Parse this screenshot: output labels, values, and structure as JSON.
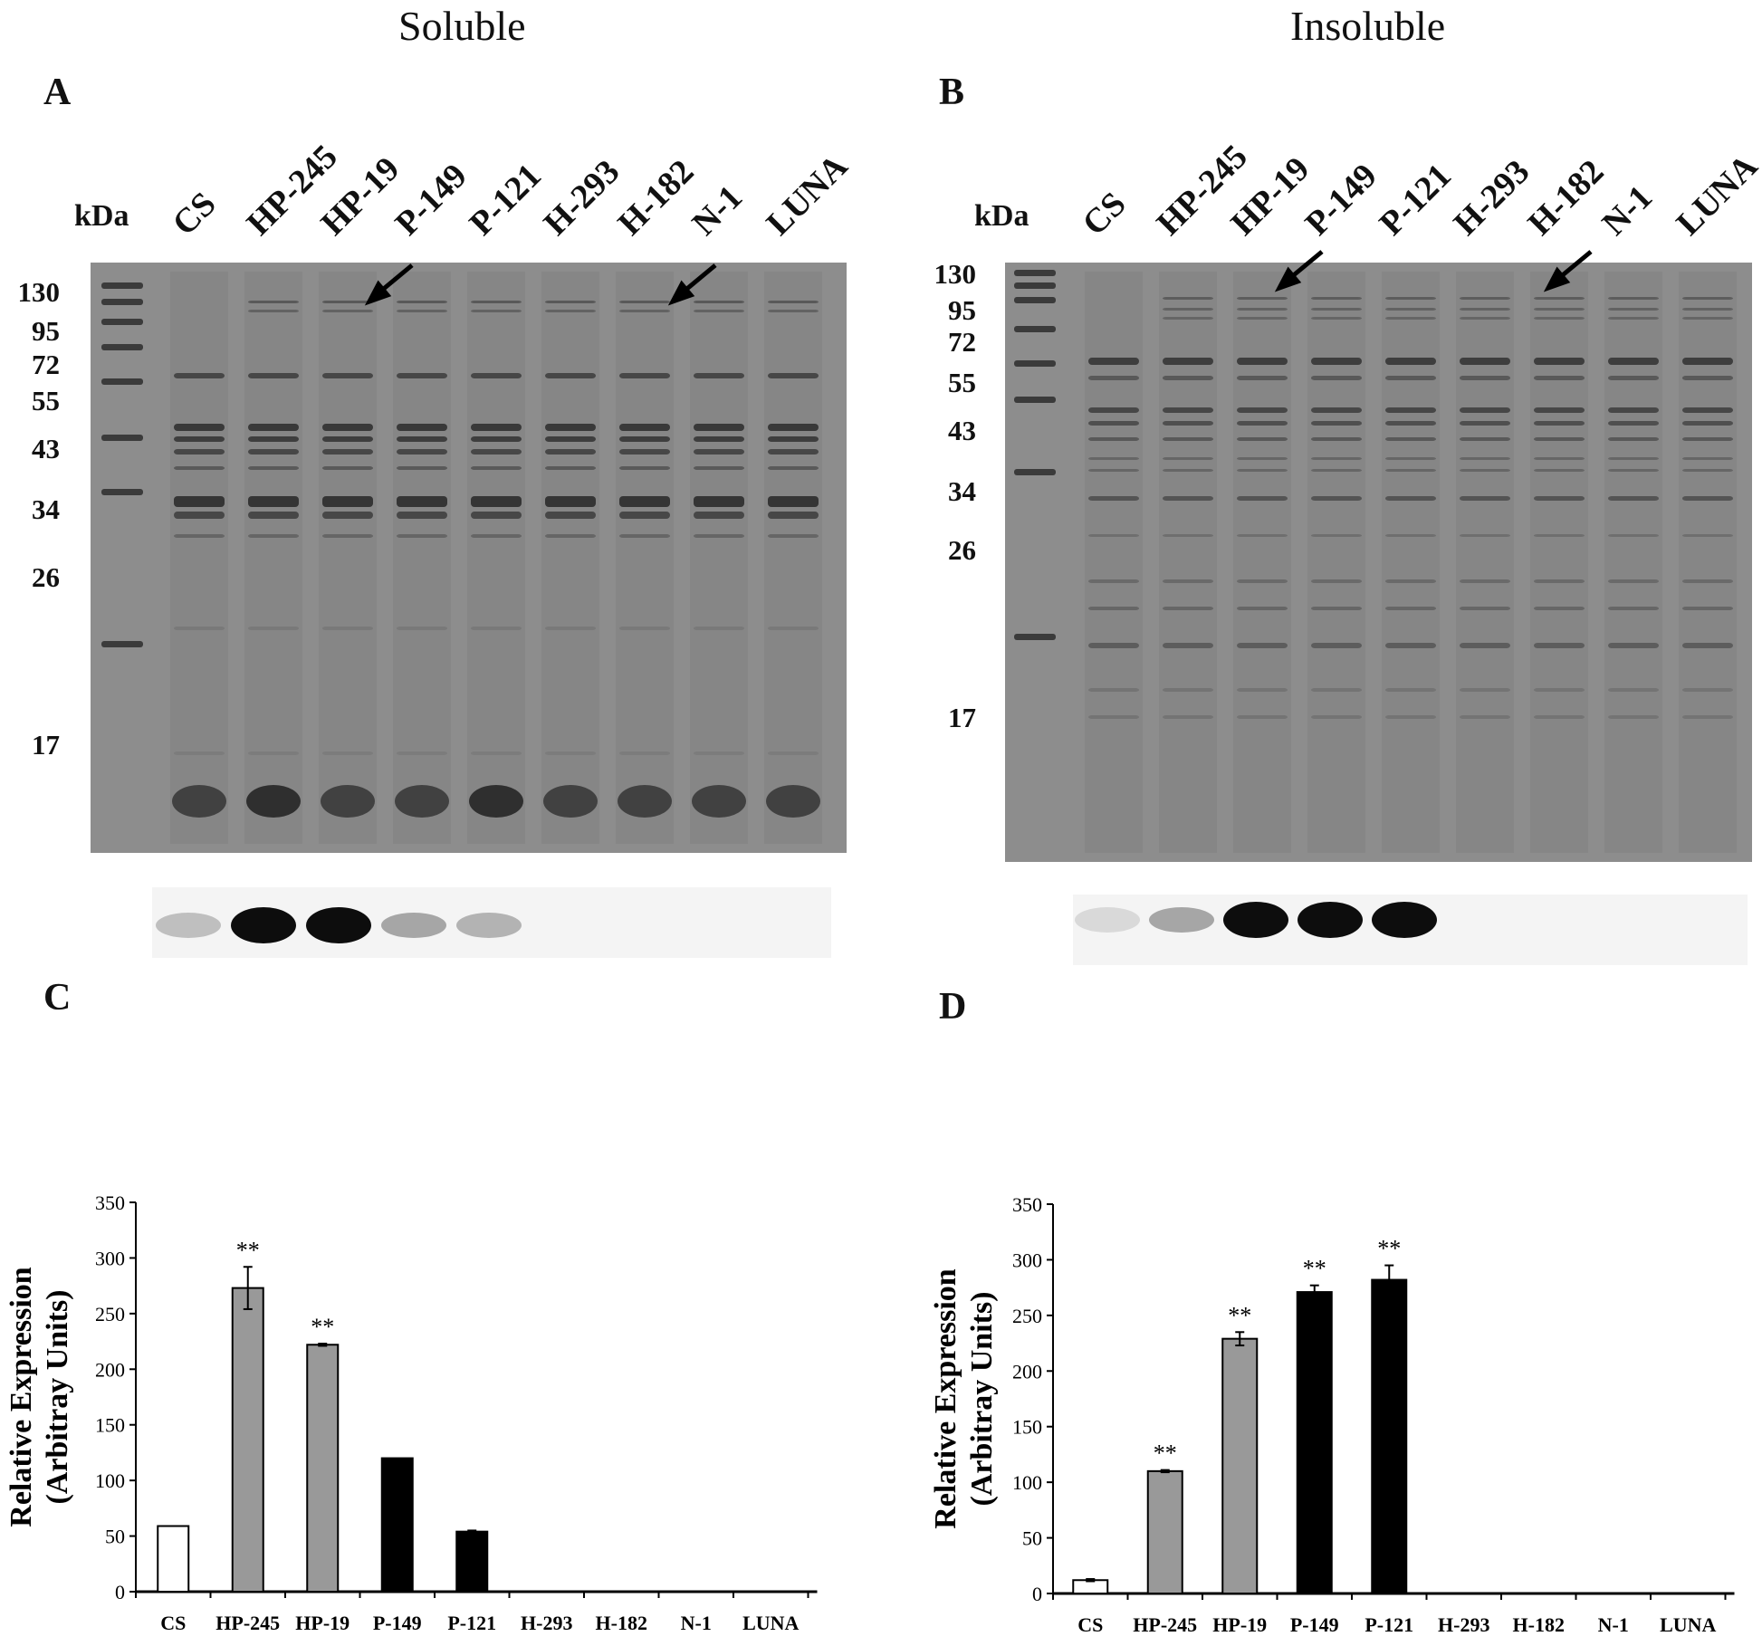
{
  "headers": {
    "soluble": "Soluble",
    "insoluble": "Insoluble"
  },
  "panels": {
    "a": "A",
    "b": "B",
    "c": "C",
    "d": "D"
  },
  "kda_label": "kDa",
  "lanes": [
    "CS",
    "HP-245",
    "HP-19",
    "P-149",
    "P-121",
    "H-293",
    "H-182",
    "N-1",
    "LUNA"
  ],
  "markers": [
    "130",
    "95",
    "72",
    "55",
    "43",
    "34",
    "26",
    "17"
  ],
  "blot_intensity": {
    "soluble": [
      0.25,
      0.95,
      0.95,
      0.35,
      0.3,
      0,
      0,
      0,
      0
    ],
    "insoluble": [
      0.15,
      0.35,
      0.95,
      0.95,
      0.95,
      0,
      0,
      0,
      0
    ]
  },
  "colors": {
    "control": "#ffffff",
    "hp_group": "#999999",
    "p_group": "#000000",
    "gel": "#8c8c8c"
  },
  "chart_data": [
    {
      "type": "bar",
      "panel": "C",
      "categories": [
        "CS",
        "HP-245",
        "HP-19",
        "P-149",
        "P-121",
        "H-293",
        "H-182",
        "N-1",
        "LUNA"
      ],
      "values": [
        59,
        273,
        222,
        120,
        54,
        0,
        0,
        0,
        0
      ],
      "errors": [
        0,
        19,
        1,
        0,
        1,
        0,
        0,
        0,
        0
      ],
      "significance": [
        "",
        "**",
        "**",
        "",
        "",
        "",
        "",
        "",
        ""
      ],
      "bar_colors": [
        "#ffffff",
        "#999999",
        "#999999",
        "#000000",
        "#000000",
        "#000000",
        "#000000",
        "#000000",
        "#000000"
      ],
      "ylabel_line1": "Relative Expression",
      "ylabel_line2": "(Arbitray Units)",
      "ylim": [
        0,
        350
      ],
      "yticks": [
        0,
        50,
        100,
        150,
        200,
        250,
        300,
        350
      ],
      "grid": false
    },
    {
      "type": "bar",
      "panel": "D",
      "categories": [
        "CS",
        "HP-245",
        "HP-19",
        "P-149",
        "P-121",
        "H-293",
        "H-182",
        "N-1",
        "LUNA"
      ],
      "values": [
        12,
        110,
        229,
        271,
        282,
        0,
        0,
        0,
        0
      ],
      "errors": [
        1,
        1,
        6,
        6,
        13,
        0,
        0,
        0,
        0
      ],
      "significance": [
        "",
        "**",
        "**",
        "**",
        "**",
        "",
        "",
        "",
        ""
      ],
      "bar_colors": [
        "#ffffff",
        "#999999",
        "#999999",
        "#000000",
        "#000000",
        "#000000",
        "#000000",
        "#000000",
        "#000000"
      ],
      "ylabel_line1": "Relative Expression",
      "ylabel_line2": "(Arbitray Units)",
      "ylim": [
        0,
        350
      ],
      "yticks": [
        0,
        50,
        100,
        150,
        200,
        250,
        300,
        350
      ],
      "grid": false
    }
  ]
}
